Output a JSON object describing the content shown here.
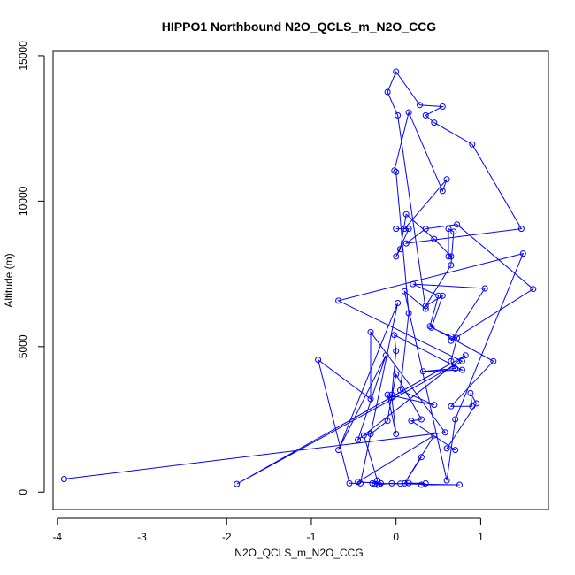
{
  "chart_data": {
    "type": "scatter",
    "title": "HIPPO1 Northbound N2O_QCLS_m_N2O_CCG",
    "xlabel": "N2O_QCLS_m_N2O_CCG",
    "ylabel": "Altitude (m)",
    "xlim": [
      -4.05,
      1.8
    ],
    "ylim": [
      -600,
      15150
    ],
    "xticks": [
      -4,
      -3,
      -2,
      -1,
      0,
      1
    ],
    "yticks": [
      0,
      5000,
      10000,
      15000
    ],
    "grid": false,
    "legend": "none",
    "series_color": "#0000ff",
    "points": [
      [
        -3.92,
        450
      ],
      [
        0.58,
        2050
      ],
      [
        -0.3,
        5500
      ],
      [
        -0.3,
        3200
      ],
      [
        -0.92,
        4550
      ],
      [
        -0.55,
        300
      ],
      [
        -0.42,
        300
      ],
      [
        0.02,
        6500
      ],
      [
        -0.68,
        1450
      ],
      [
        -0.12,
        4700
      ],
      [
        -0.45,
        1800
      ],
      [
        0.82,
        4700
      ],
      [
        -1.88,
        280
      ],
      [
        0.78,
        4500
      ],
      [
        -0.68,
        6580
      ],
      [
        1.5,
        8200
      ],
      [
        0.7,
        2500
      ],
      [
        0.6,
        400
      ],
      [
        0.1,
        6900
      ],
      [
        0.35,
        6300
      ],
      [
        0.02,
        12950
      ],
      [
        -0.1,
        13750
      ],
      [
        0.0,
        14450
      ],
      [
        0.28,
        13300
      ],
      [
        0.55,
        13250
      ],
      [
        0.35,
        12950
      ],
      [
        0.45,
        12700
      ],
      [
        0.9,
        11950
      ],
      [
        1.48,
        9050
      ],
      [
        0.12,
        8550
      ],
      [
        0.35,
        9050
      ],
      [
        0.72,
        9200
      ],
      [
        1.62,
        6980
      ],
      [
        0.65,
        5200
      ],
      [
        1.05,
        7000
      ],
      [
        0.2,
        7150
      ],
      [
        0.5,
        6750
      ],
      [
        0.4,
        5700
      ],
      [
        1.15,
        4500
      ],
      [
        0.65,
        2950
      ],
      [
        0.9,
        2950
      ],
      [
        0.88,
        3400
      ],
      [
        0.95,
        3050
      ],
      [
        0.6,
        1500
      ],
      [
        0.7,
        1450
      ],
      [
        0.18,
        2450
      ],
      [
        0.3,
        2500
      ],
      [
        0.0,
        4050
      ],
      [
        -0.05,
        3250
      ],
      [
        0.0,
        2000
      ],
      [
        -0.1,
        3350
      ],
      [
        0.45,
        3000
      ],
      [
        0.05,
        3500
      ],
      [
        0.15,
        6150
      ],
      [
        0.0,
        11000
      ],
      [
        -0.02,
        11050
      ],
      [
        0.15,
        13050
      ],
      [
        0.55,
        10350
      ],
      [
        0.6,
        10750
      ],
      [
        0.1,
        9050
      ],
      [
        0.0,
        9050
      ],
      [
        0.15,
        9050
      ],
      [
        0.0,
        8100
      ],
      [
        0.05,
        8350
      ],
      [
        0.12,
        9550
      ],
      [
        0.45,
        8700
      ],
      [
        0.65,
        8100
      ],
      [
        0.62,
        8100
      ],
      [
        0.62,
        9050
      ],
      [
        0.68,
        8950
      ],
      [
        0.65,
        7800
      ],
      [
        0.35,
        6400
      ],
      [
        0.55,
        6750
      ],
      [
        0.42,
        5650
      ],
      [
        0.65,
        5350
      ],
      [
        0.72,
        5300
      ],
      [
        0.65,
        4500
      ],
      [
        0.7,
        4250
      ],
      [
        0.32,
        4150
      ],
      [
        0.78,
        4200
      ],
      [
        -0.02,
        5400
      ],
      [
        0.0,
        4850
      ],
      [
        -0.05,
        3350
      ],
      [
        -0.1,
        2450
      ],
      [
        -0.3,
        2000
      ],
      [
        -0.38,
        1950
      ],
      [
        -0.22,
        400
      ],
      [
        -0.25,
        280
      ],
      [
        -0.22,
        250
      ],
      [
        -0.2,
        260
      ],
      [
        -0.05,
        300
      ],
      [
        0.05,
        290
      ],
      [
        0.15,
        310
      ],
      [
        0.35,
        300
      ],
      [
        0.3,
        250
      ],
      [
        0.75,
        250
      ],
      [
        -0.28,
        300
      ],
      [
        -0.18,
        300
      ],
      [
        -0.45,
        350
      ],
      [
        0.45,
        1950
      ],
      [
        0.1,
        300
      ],
      [
        0.3,
        1200
      ]
    ]
  }
}
